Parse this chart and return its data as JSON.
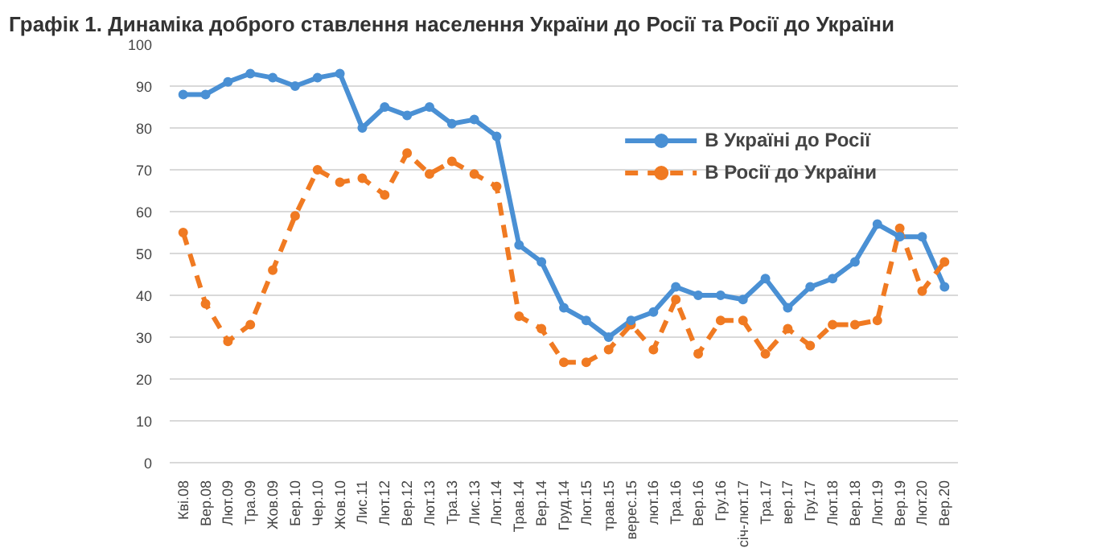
{
  "chart_data": {
    "type": "line",
    "title": "Графік 1. Динаміка доброго ставлення населення України до Росії та Росії до України",
    "categories": [
      "Кві.08",
      "Вер.08",
      "Лют.09",
      "Тра.09",
      "Жов.09",
      "Бер.10",
      "Чер.10",
      "Жов.10",
      "Лис.11",
      "Лют.12",
      "Вер.12",
      "Лют.13",
      "Тра.13",
      "Лис.13",
      "Лют.14",
      "Трав.14",
      "Вер.14",
      "Груд.14",
      "Лют.15",
      "трав.15",
      "верес.15",
      "лют.16",
      "Тра.16",
      "Вер.16",
      "Гру.16",
      "січ-лют.17",
      "Тра.17",
      "вер.17",
      "Гру.17",
      "Лют.18",
      "Вер.18",
      "Лют.19",
      "Вер.19",
      "Лют.20",
      "Вер.20"
    ],
    "series": [
      {
        "name": "В Україні до Росії",
        "color": "#4a90d4",
        "line_style": "solid",
        "values": [
          88,
          88,
          91,
          93,
          92,
          90,
          92,
          93,
          80,
          85,
          83,
          85,
          81,
          82,
          78,
          52,
          48,
          37,
          34,
          30,
          34,
          36,
          42,
          40,
          40,
          39,
          44,
          37,
          42,
          44,
          48,
          57,
          54,
          54,
          42
        ]
      },
      {
        "name": "В Росії до України",
        "color": "#f07a22",
        "line_style": "dashed",
        "values": [
          55,
          38,
          29,
          33,
          46,
          59,
          70,
          67,
          68,
          64,
          74,
          69,
          72,
          69,
          66,
          35,
          32,
          24,
          24,
          27,
          33,
          27,
          39,
          26,
          34,
          34,
          26,
          32,
          28,
          33,
          33,
          34,
          56,
          41,
          48
        ]
      }
    ],
    "ylim": [
      0,
      100
    ],
    "yticks": [
      0,
      10,
      20,
      30,
      40,
      50,
      60,
      70,
      80,
      90,
      100
    ],
    "grid": "y",
    "legend": "top right",
    "marker": "circle"
  }
}
